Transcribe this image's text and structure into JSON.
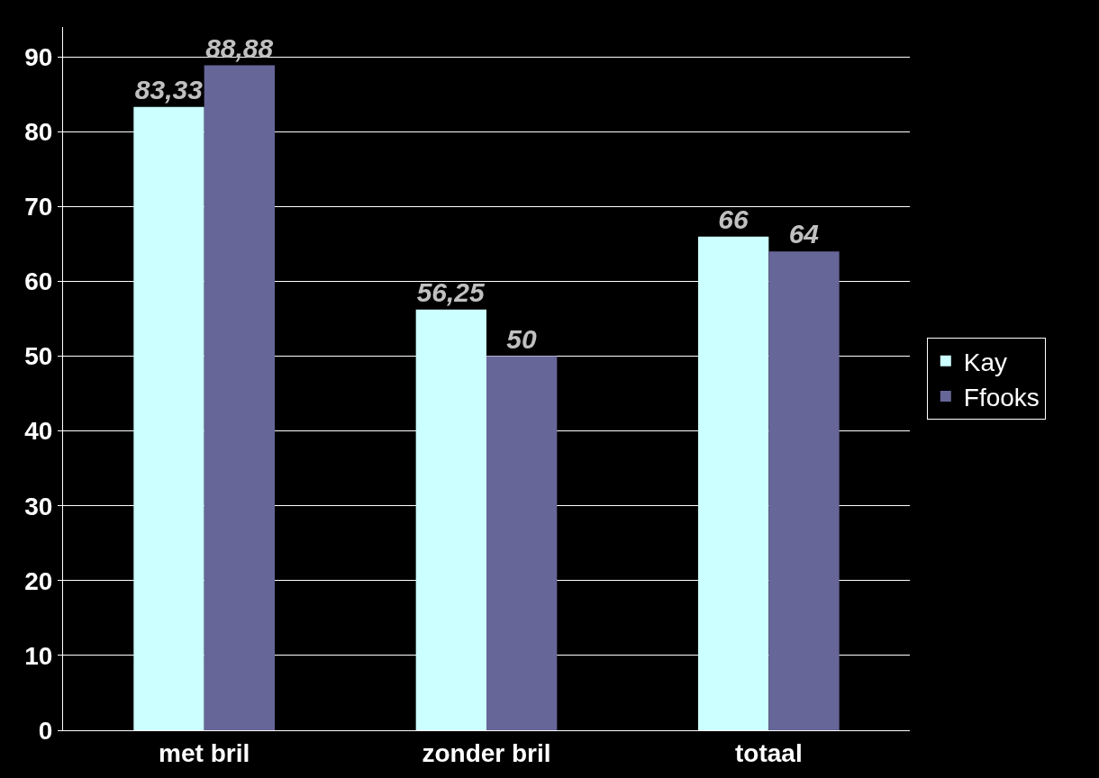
{
  "chart_data": {
    "type": "bar",
    "categories": [
      "met bril",
      "zonder bril",
      "totaal"
    ],
    "series": [
      {
        "name": "Kay",
        "color": "#ccffff",
        "values": [
          83.33,
          56.25,
          66
        ],
        "value_labels": [
          "83,33",
          "56,25",
          "66"
        ]
      },
      {
        "name": "Ffooks",
        "color": "#666699",
        "values": [
          88.88,
          50,
          64
        ],
        "value_labels": [
          "88,88",
          "50",
          "64"
        ]
      }
    ],
    "ylim": [
      0,
      94
    ],
    "yticks": [
      0,
      10,
      20,
      30,
      40,
      50,
      60,
      70,
      80,
      90
    ],
    "grid": "y",
    "legend": "right"
  }
}
